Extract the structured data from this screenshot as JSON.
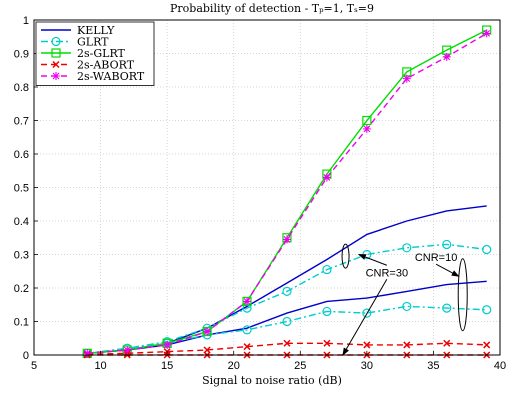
{
  "chart_data": {
    "type": "line",
    "title": "Probability of detection - Tₚ=1, Tₛ=9",
    "xlabel": "Signal to noise ratio (dB)",
    "ylabel": "",
    "xlim": [
      5,
      40
    ],
    "ylim": [
      0,
      1
    ],
    "xticks": [
      5,
      10,
      15,
      20,
      25,
      30,
      35,
      40
    ],
    "yticks": [
      0,
      0.1,
      0.2,
      0.3,
      0.4,
      0.5,
      0.6,
      0.7,
      0.8,
      0.9,
      1
    ],
    "grid": true,
    "legend_position": "top-left",
    "series": [
      {
        "name": "KELLY",
        "color": "#0000cc",
        "style": "solid",
        "marker": "none",
        "group": "CNR=30",
        "x": [
          9,
          12,
          15,
          18,
          21,
          24,
          27,
          30,
          33,
          36,
          39
        ],
        "y": [
          0.005,
          0.015,
          0.035,
          0.08,
          0.145,
          0.215,
          0.285,
          0.36,
          0.4,
          0.43,
          0.445
        ]
      },
      {
        "name": "KELLY",
        "color": "#0000cc",
        "style": "solid",
        "marker": "none",
        "group": "CNR=10",
        "x": [
          9,
          12,
          15,
          18,
          21,
          24,
          27,
          30,
          33,
          36,
          39
        ],
        "y": [
          0.005,
          0.015,
          0.03,
          0.06,
          0.08,
          0.125,
          0.16,
          0.17,
          0.19,
          0.21,
          0.22
        ]
      },
      {
        "name": "GLRT",
        "color": "#00cccc",
        "style": "dashdot",
        "marker": "circle",
        "group": "CNR=30",
        "x": [
          9,
          12,
          15,
          18,
          21,
          24,
          27,
          30,
          33,
          36,
          39
        ],
        "y": [
          0.005,
          0.02,
          0.04,
          0.08,
          0.14,
          0.19,
          0.255,
          0.3,
          0.32,
          0.33,
          0.315
        ]
      },
      {
        "name": "GLRT",
        "color": "#00cccc",
        "style": "dashdot",
        "marker": "circle",
        "group": "CNR=10",
        "x": [
          9,
          12,
          15,
          18,
          21,
          24,
          27,
          30,
          33,
          36,
          39
        ],
        "y": [
          0.005,
          0.02,
          0.035,
          0.06,
          0.075,
          0.1,
          0.13,
          0.125,
          0.145,
          0.14,
          0.135
        ]
      },
      {
        "name": "2s-GLRT",
        "color": "#00dd00",
        "style": "solid",
        "marker": "square",
        "x": [
          9,
          12,
          15,
          18,
          21,
          24,
          27,
          30,
          33,
          36,
          39
        ],
        "y": [
          0.005,
          0.015,
          0.035,
          0.07,
          0.16,
          0.35,
          0.54,
          0.7,
          0.845,
          0.91,
          0.97
        ]
      },
      {
        "name": "2s-ABORT",
        "color": "#ee0000",
        "style": "dashed",
        "marker": "x",
        "group": "CNR=30",
        "x": [
          9,
          12,
          15,
          18,
          21,
          24,
          27,
          30,
          33,
          36,
          39
        ],
        "y": [
          0.002,
          0.005,
          0.01,
          0.015,
          0.025,
          0.035,
          0.035,
          0.03,
          0.03,
          0.035,
          0.03
        ]
      },
      {
        "name": "2s-ABORT",
        "color": "#ee0000",
        "style": "dashed",
        "marker": "x",
        "group": "CNR=10",
        "x": [
          9,
          12,
          15,
          18,
          21,
          24,
          27,
          30,
          33,
          36,
          39
        ],
        "y": [
          0.0,
          0.0,
          0.0,
          0.0,
          0.0,
          0.0,
          0.0,
          0.0,
          0.0,
          0.0,
          0.0
        ]
      },
      {
        "name": "2s-WABORT",
        "color": "#ee00ee",
        "style": "dashed",
        "marker": "star",
        "x": [
          9,
          12,
          15,
          18,
          21,
          24,
          27,
          30,
          33,
          36,
          39
        ],
        "y": [
          0.005,
          0.015,
          0.03,
          0.07,
          0.16,
          0.345,
          0.53,
          0.675,
          0.825,
          0.89,
          0.96
        ]
      }
    ],
    "legend": [
      "KELLY",
      "GLRT",
      "2s-GLRT",
      "2s-ABORT",
      "2s-WABORT"
    ],
    "annotations": [
      {
        "text": "CNR=30",
        "label_at": [
          31.5,
          0.235
        ],
        "ellipse_center": [
          28.4,
          0.295
        ],
        "arrows_to": [
          [
            29.4,
            0.3
          ],
          [
            28.2,
            0.0
          ]
        ]
      },
      {
        "text": "CNR=10",
        "label_at": [
          35.2,
          0.28
        ],
        "ellipse_center": [
          37.2,
          0.18
        ],
        "arrows_to": [
          [
            36.9,
            0.235
          ]
        ]
      }
    ]
  }
}
